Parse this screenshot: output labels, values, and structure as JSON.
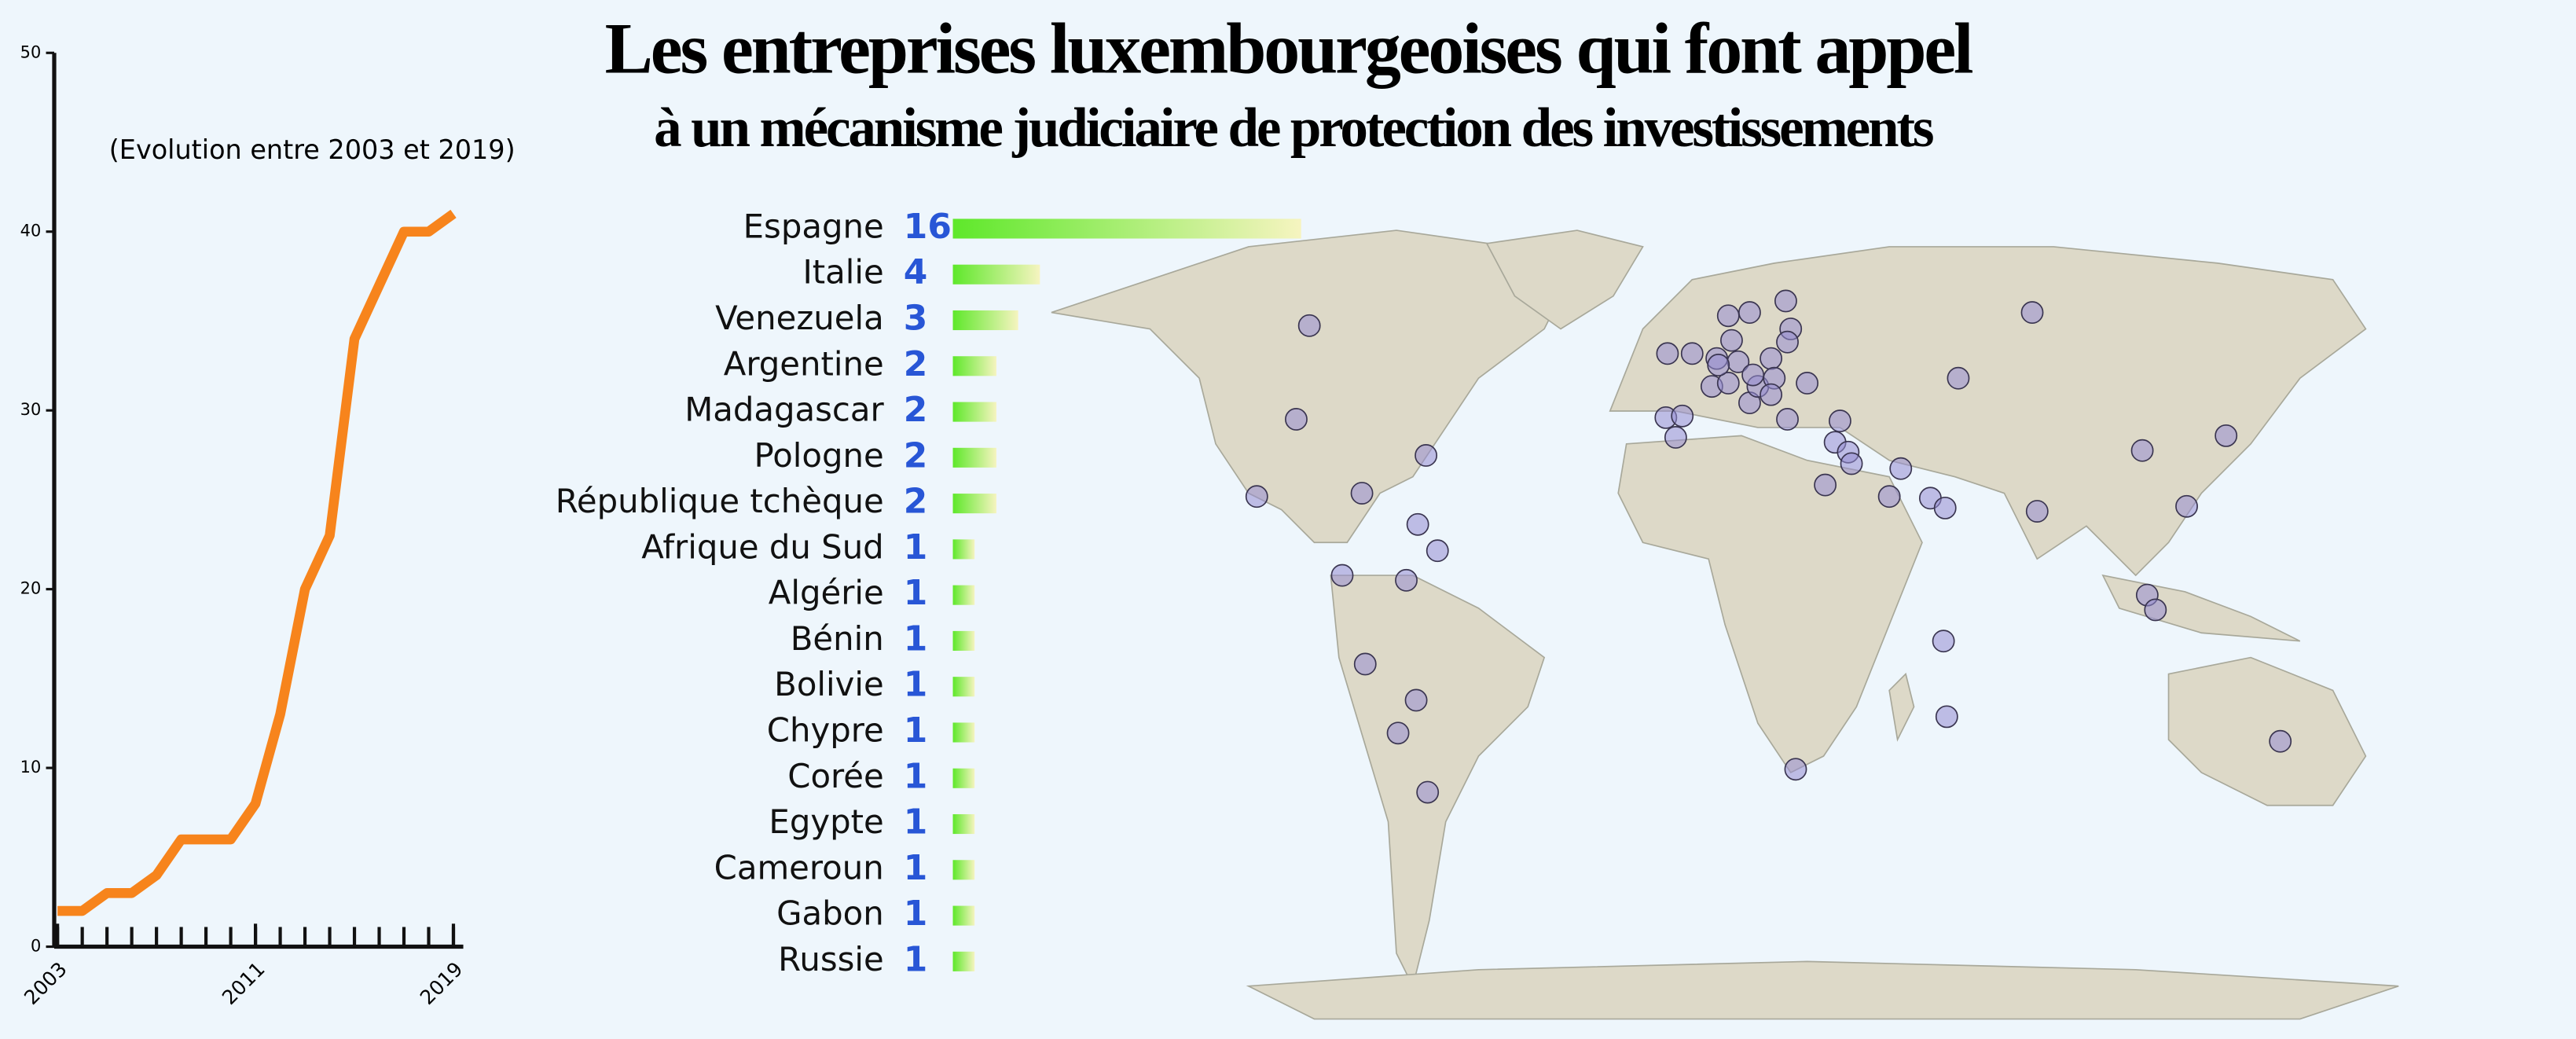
{
  "title": "Les entreprises luxembourgeoises qui font appel",
  "subtitle": "à un mécanisme judiciaire de protection des investissements",
  "chart_data": [
    {
      "type": "line",
      "title": "(Evolution entre 2003 et 2019)",
      "x": [
        2003,
        2004,
        2005,
        2006,
        2007,
        2008,
        2009,
        2010,
        2011,
        2012,
        2013,
        2014,
        2015,
        2016,
        2017,
        2018,
        2019
      ],
      "values": [
        2,
        2,
        3,
        3,
        4,
        6,
        6,
        6,
        8,
        13,
        20,
        23,
        34,
        37,
        40,
        40,
        41
      ],
      "color": "#f7841c",
      "xlim": [
        2003,
        2019
      ],
      "xticks": [
        2003,
        2011,
        2019
      ],
      "ylim": [
        0,
        50
      ],
      "yticks": [
        0,
        10,
        20,
        30,
        40,
        50
      ]
    },
    {
      "type": "hbar",
      "categories": [
        "Espagne",
        "Italie",
        "Venezuela",
        "Argentine",
        "Madagascar",
        "Pologne",
        "République tchèque",
        "Afrique du Sud",
        "Algérie",
        "Bénin",
        "Bolivie",
        "Chypre",
        "Corée",
        "Egypte",
        "Cameroun",
        "Gabon",
        "Russie"
      ],
      "values": [
        16,
        4,
        3,
        2,
        2,
        2,
        2,
        1,
        1,
        1,
        1,
        1,
        1,
        1,
        1,
        1,
        1
      ],
      "color": "#5ee82a"
    }
  ]
}
